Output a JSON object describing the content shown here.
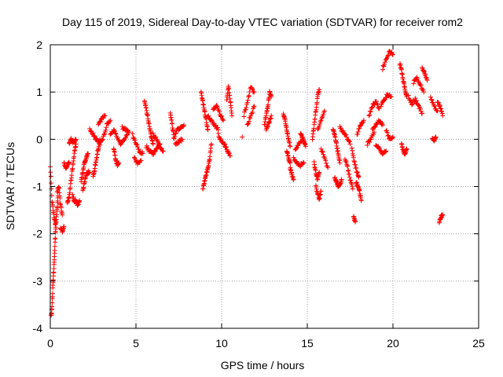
{
  "chart_data": {
    "type": "scatter",
    "title": "Day 115 of 2019, Sidereal Day-to-day VTEC variation (SDTVAR) for receiver rom2",
    "xlabel": "GPS time / hours",
    "ylabel": "SDTVAR / TECUs",
    "xlim": [
      0,
      25
    ],
    "ylim": [
      -4,
      2
    ],
    "x_ticks": [
      "0",
      "5",
      "10",
      "15",
      "20",
      "25"
    ],
    "y_ticks": [
      "-4",
      "-3",
      "-2",
      "-1",
      "0",
      "1",
      "2"
    ],
    "grid": true,
    "marker": "+",
    "color": "#ff0000",
    "series": [
      {
        "name": "",
        "segments": [
          {
            "x": [
              0.0,
              0.1,
              0.2,
              0.3,
              0.4,
              0.45
            ],
            "y": [
              -0.55,
              -1.3,
              -1.6,
              -1.8,
              -1.5,
              -1.2
            ]
          },
          {
            "x": [
              0.05,
              0.1,
              0.15,
              0.2,
              0.25,
              0.3,
              0.35
            ],
            "y": [
              -3.75,
              -3.55,
              -3.1,
              -2.8,
              -2.4,
              -2.0,
              -1.7
            ]
          },
          {
            "x": [
              0.4,
              0.5,
              0.6,
              0.7
            ],
            "y": [
              -1.1,
              -1.0,
              -1.4,
              -1.6
            ]
          },
          {
            "x": [
              0.6,
              0.7,
              0.8
            ],
            "y": [
              -1.9,
              -1.95,
              -1.85
            ]
          },
          {
            "x": [
              0.8,
              0.9,
              1.0,
              1.1
            ],
            "y": [
              -0.5,
              -0.6,
              -0.55,
              -0.5
            ]
          },
          {
            "x": [
              1.0,
              1.1,
              1.2,
              1.3,
              1.4,
              1.5
            ],
            "y": [
              -1.35,
              -1.2,
              -0.9,
              -0.6,
              -0.3,
              -0.1
            ]
          },
          {
            "x": [
              1.1,
              1.2,
              1.3,
              1.4,
              1.5
            ],
            "y": [
              -0.1,
              0.0,
              -0.05,
              -0.05,
              0.0
            ]
          },
          {
            "x": [
              1.3,
              1.4,
              1.5,
              1.6,
              1.7
            ],
            "y": [
              -1.2,
              -1.3,
              -1.3,
              -1.4,
              -1.3
            ]
          },
          {
            "x": [
              1.8,
              1.9,
              2.0,
              2.1,
              2.2
            ],
            "y": [
              -0.9,
              -0.7,
              -0.5,
              -0.4,
              -0.3
            ]
          },
          {
            "x": [
              1.9,
              2.0,
              2.1,
              2.2,
              2.3
            ],
            "y": [
              -1.1,
              -0.9,
              -0.75,
              -0.7,
              -0.7
            ]
          },
          {
            "x": [
              2.3,
              2.5,
              2.7,
              2.9,
              3.1,
              3.3,
              3.5
            ],
            "y": [
              0.2,
              0.1,
              0.0,
              -0.1,
              0.05,
              0.3,
              0.4
            ]
          },
          {
            "x": [
              2.5,
              2.6,
              2.7,
              2.8,
              2.9
            ],
            "y": [
              -0.8,
              -0.6,
              -0.4,
              -0.2,
              0.0
            ]
          },
          {
            "x": [
              2.8,
              3.0,
              3.2
            ],
            "y": [
              0.3,
              0.45,
              0.5
            ]
          },
          {
            "x": [
              3.5,
              3.7,
              3.9,
              4.1,
              4.3,
              4.5
            ],
            "y": [
              0.1,
              0.2,
              0.05,
              -0.1,
              0.0,
              0.1
            ]
          },
          {
            "x": [
              3.7,
              3.8,
              3.9,
              4.0
            ],
            "y": [
              -0.2,
              -0.4,
              -0.55,
              -0.5
            ]
          },
          {
            "x": [
              4.2,
              4.4,
              4.6
            ],
            "y": [
              0.25,
              0.2,
              0.15
            ]
          },
          {
            "x": [
              4.8,
              5.0,
              5.2,
              5.4
            ],
            "y": [
              0.1,
              -0.1,
              -0.25,
              -0.3
            ]
          },
          {
            "x": [
              4.9,
              5.1,
              5.3
            ],
            "y": [
              -0.4,
              -0.5,
              -0.45
            ]
          },
          {
            "x": [
              5.5,
              5.6,
              5.7,
              5.8,
              5.9,
              6.0
            ],
            "y": [
              0.8,
              0.65,
              0.45,
              0.25,
              0.05,
              -0.1
            ]
          },
          {
            "x": [
              5.6,
              5.8,
              6.0,
              6.2,
              6.4
            ],
            "y": [
              -0.15,
              -0.25,
              -0.3,
              -0.2,
              -0.1
            ]
          },
          {
            "x": [
              6.0,
              6.2,
              6.4,
              6.6
            ],
            "y": [
              0.1,
              0.0,
              -0.15,
              -0.25
            ]
          },
          {
            "x": [
              7.0,
              7.1,
              7.2
            ],
            "y": [
              0.55,
              0.35,
              0.1
            ]
          },
          {
            "x": [
              7.2,
              7.4,
              7.6,
              7.8
            ],
            "y": [
              0.0,
              0.2,
              0.25,
              0.3
            ]
          },
          {
            "x": [
              7.3,
              7.5,
              7.7
            ],
            "y": [
              -0.1,
              -0.05,
              0.0
            ]
          },
          {
            "x": [
              8.8,
              8.9,
              9.0,
              9.1,
              9.2
            ],
            "y": [
              1.0,
              0.8,
              0.6,
              0.4,
              0.2
            ]
          },
          {
            "x": [
              8.9,
              9.0,
              9.1,
              9.2,
              9.3,
              9.4
            ],
            "y": [
              -1.05,
              -0.9,
              -0.75,
              -0.6,
              -0.4,
              -0.1
            ]
          },
          {
            "x": [
              9.2,
              9.4,
              9.6,
              9.8
            ],
            "y": [
              0.5,
              0.4,
              0.3,
              0.2
            ]
          },
          {
            "x": [
              9.5,
              9.7,
              9.9,
              10.1
            ],
            "y": [
              0.65,
              0.7,
              0.55,
              0.4
            ]
          },
          {
            "x": [
              9.8,
              10.0,
              10.2
            ],
            "y": [
              0.1,
              -0.05,
              -0.1
            ]
          },
          {
            "x": [
              10.2,
              10.35,
              10.5
            ],
            "y": [
              -0.15,
              -0.25,
              -0.35
            ]
          },
          {
            "x": [
              10.3,
              10.4,
              10.5,
              10.6
            ],
            "y": [
              0.85,
              1.1,
              0.8,
              0.5
            ]
          },
          {
            "x": [
              11.3,
              11.5,
              11.7,
              11.9
            ],
            "y": [
              0.5,
              0.8,
              1.1,
              1.0
            ]
          },
          {
            "x": [
              11.5,
              11.7,
              11.9
            ],
            "y": [
              0.3,
              0.5,
              0.7
            ]
          },
          {
            "x": [
              11.2
            ],
            "y": [
              0.05
            ]
          },
          {
            "x": [
              12.5,
              12.6,
              12.7,
              12.8,
              12.9
            ],
            "y": [
              0.3,
              0.5,
              0.7,
              1.0,
              0.9
            ]
          },
          {
            "x": [
              12.6,
              12.75,
              12.9
            ],
            "y": [
              0.2,
              0.35,
              0.5
            ]
          },
          {
            "x": [
              13.6,
              13.7,
              13.8,
              13.9,
              14.0
            ],
            "y": [
              0.55,
              0.4,
              0.2,
              0.0,
              -0.15
            ]
          },
          {
            "x": [
              13.8,
              13.9,
              14.0
            ],
            "y": [
              -0.25,
              -0.4,
              -0.5
            ]
          },
          {
            "x": [
              14.0,
              14.1,
              14.2
            ],
            "y": [
              -0.6,
              -0.75,
              -0.85
            ]
          },
          {
            "x": [
              14.2,
              14.4,
              14.6,
              14.8
            ],
            "y": [
              -0.4,
              -0.5,
              -0.55,
              -0.5
            ]
          },
          {
            "x": [
              14.3,
              14.5,
              14.7
            ],
            "y": [
              -0.2,
              -0.1,
              0.0
            ]
          },
          {
            "x": [
              14.6,
              14.7,
              14.8,
              14.9
            ],
            "y": [
              0.1,
              0.05,
              -0.05,
              -0.15
            ]
          },
          {
            "x": [
              15.3,
              15.4,
              15.5,
              15.6,
              15.7
            ],
            "y": [
              0.0,
              0.3,
              0.6,
              0.9,
              1.05
            ]
          },
          {
            "x": [
              15.4,
              15.5,
              15.6,
              15.7
            ],
            "y": [
              -0.5,
              -0.7,
              -0.85,
              -0.7
            ]
          },
          {
            "x": [
              15.5,
              15.6,
              15.7,
              15.8
            ],
            "y": [
              -1.0,
              -1.15,
              -1.25,
              -1.1
            ]
          },
          {
            "x": [
              15.6,
              15.8,
              16.0
            ],
            "y": [
              0.2,
              0.4,
              0.6
            ]
          },
          {
            "x": [
              15.8,
              16.0,
              16.2
            ],
            "y": [
              -0.2,
              -0.4,
              -0.6
            ]
          },
          {
            "x": [
              16.5,
              16.6,
              16.7,
              16.8,
              16.9
            ],
            "y": [
              0.2,
              0.1,
              -0.1,
              -0.3,
              -0.5
            ]
          },
          {
            "x": [
              16.6,
              16.7,
              16.8,
              16.9,
              17.0
            ],
            "y": [
              -0.8,
              -0.9,
              -1.0,
              -0.95,
              -0.85
            ]
          },
          {
            "x": [
              16.9,
              17.1,
              17.3,
              17.5
            ],
            "y": [
              0.25,
              0.15,
              0.05,
              -0.1
            ]
          },
          {
            "x": [
              17.2,
              17.35,
              17.5,
              17.65
            ],
            "y": [
              -0.4,
              -0.6,
              -0.85,
              -1.05
            ]
          },
          {
            "x": [
              17.6,
              17.75,
              17.9,
              18.0
            ],
            "y": [
              -0.2,
              -0.5,
              -0.7,
              -0.8
            ]
          },
          {
            "x": [
              17.7,
              17.8
            ],
            "y": [
              -1.65,
              -1.75
            ]
          },
          {
            "x": [
              17.85,
              17.95,
              18.05,
              18.15
            ],
            "y": [
              -0.9,
              -1.0,
              -1.1,
              -1.3
            ]
          },
          {
            "x": [
              17.9,
              18.1,
              18.3
            ],
            "y": [
              0.1,
              0.3,
              0.4
            ]
          },
          {
            "x": [
              18.5,
              18.7,
              18.9
            ],
            "y": [
              -0.1,
              0.0,
              0.15
            ]
          },
          {
            "x": [
              18.6,
              18.8,
              19.0,
              19.2
            ],
            "y": [
              0.5,
              0.7,
              0.8,
              0.65
            ]
          },
          {
            "x": [
              18.8,
              19.0,
              19.2,
              19.4
            ],
            "y": [
              0.2,
              0.3,
              0.4,
              0.3
            ]
          },
          {
            "x": [
              19.0,
              19.2,
              19.4,
              19.6
            ],
            "y": [
              -0.1,
              -0.2,
              -0.3,
              -0.25
            ]
          },
          {
            "x": [
              19.3,
              19.5,
              19.7,
              19.9
            ],
            "y": [
              0.7,
              0.85,
              0.95,
              0.9
            ]
          },
          {
            "x": [
              19.4,
              19.6,
              19.8,
              20.0
            ],
            "y": [
              1.5,
              1.7,
              1.85,
              1.8
            ]
          },
          {
            "x": [
              19.6,
              19.8,
              20.0
            ],
            "y": [
              0.2,
              0.0,
              0.05
            ]
          },
          {
            "x": [
              20.4,
              20.5,
              20.6,
              20.7,
              20.8
            ],
            "y": [
              1.6,
              1.45,
              1.25,
              1.05,
              0.9
            ]
          },
          {
            "x": [
              20.5,
              20.6,
              20.7,
              20.8
            ],
            "y": [
              -0.1,
              -0.25,
              -0.3,
              -0.2
            ]
          },
          {
            "x": [
              20.9,
              21.1,
              21.3,
              21.5,
              21.7
            ],
            "y": [
              0.9,
              0.75,
              0.85,
              0.7,
              0.55
            ]
          },
          {
            "x": [
              21.2,
              21.4,
              21.6,
              21.8
            ],
            "y": [
              1.2,
              1.3,
              1.15,
              1.0
            ]
          },
          {
            "x": [
              21.7,
              21.85,
              22.0
            ],
            "y": [
              1.5,
              1.4,
              1.25
            ]
          },
          {
            "x": [
              22.2,
              22.4,
              22.6
            ],
            "y": [
              0.9,
              0.7,
              0.6
            ]
          },
          {
            "x": [
              22.3,
              22.4,
              22.5
            ],
            "y": [
              0.0,
              -0.05,
              0.05
            ]
          },
          {
            "x": [
              22.7,
              22.8,
              22.9
            ],
            "y": [
              -1.75,
              -1.65,
              -1.6
            ]
          },
          {
            "x": [
              22.6,
              22.75,
              22.9
            ],
            "y": [
              0.8,
              0.7,
              0.5
            ]
          }
        ]
      }
    ]
  }
}
